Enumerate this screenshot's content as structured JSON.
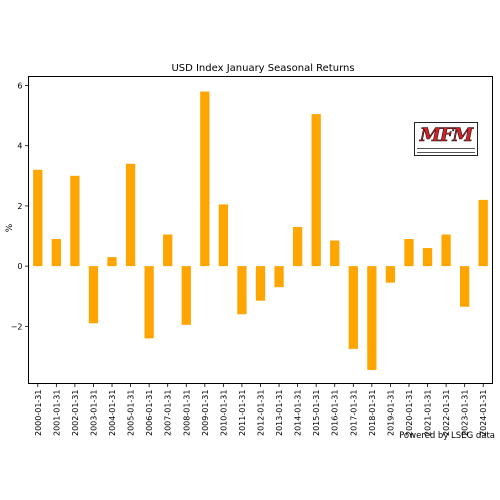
{
  "logo": {
    "text": "MFM"
  },
  "chart_data": {
    "type": "bar",
    "title": "USD Index January Seasonal Returns",
    "xlabel": "",
    "ylabel": "%",
    "ylim": [
      -3.9,
      6.3
    ],
    "yticks": [
      -2,
      0,
      2,
      4,
      6
    ],
    "grid": false,
    "legend": "none",
    "bar_color": "#FFA500",
    "footnote": "Powered by LSEG data",
    "categories": [
      "2000-01-31",
      "2001-01-31",
      "2002-01-31",
      "2003-01-31",
      "2004-01-31",
      "2005-01-31",
      "2006-01-31",
      "2007-01-31",
      "2008-01-31",
      "2009-01-31",
      "2010-01-31",
      "2011-01-31",
      "2012-01-31",
      "2013-01-31",
      "2014-01-31",
      "2015-01-31",
      "2016-01-31",
      "2017-01-31",
      "2018-01-31",
      "2019-01-31",
      "2020-01-31",
      "2021-01-31",
      "2022-01-31",
      "2023-01-31",
      "2024-01-31"
    ],
    "values": [
      3.2,
      0.9,
      3.0,
      -1.9,
      0.3,
      3.4,
      -2.4,
      1.05,
      -1.95,
      5.8,
      2.05,
      -1.6,
      -1.15,
      -0.7,
      1.3,
      5.05,
      0.85,
      -2.75,
      -3.45,
      -0.55,
      0.9,
      0.6,
      1.05,
      -1.35,
      2.2
    ]
  }
}
